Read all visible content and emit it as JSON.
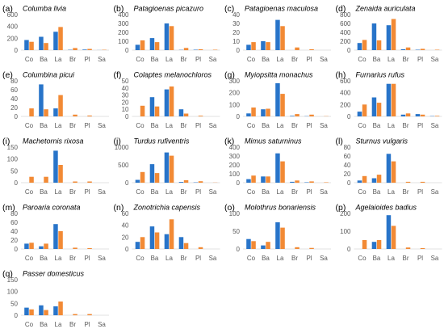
{
  "chart_data": [
    {
      "type": "bar",
      "label": "(a)",
      "title": "Columba livia",
      "categories": [
        "Co",
        "Ba",
        "La",
        "Br",
        "Pl",
        "Sa"
      ],
      "yticks": [
        0,
        200,
        400,
        600
      ],
      "ylim": [
        0,
        600
      ],
      "grid": false,
      "series": [
        {
          "color": "#2874c9",
          "values": [
            170,
            225,
            310,
            5,
            10,
            2
          ]
        },
        {
          "color": "#f28a35",
          "values": [
            140,
            120,
            390,
            35,
            20,
            5
          ]
        }
      ]
    },
    {
      "type": "bar",
      "label": "(b)",
      "title": "Patagioenas picazuro",
      "categories": [
        "Co",
        "Ba",
        "La",
        "Br",
        "Pl",
        "Sa"
      ],
      "yticks": [
        0,
        100,
        200,
        300,
        400
      ],
      "ylim": [
        0,
        400
      ],
      "grid": false,
      "series": [
        {
          "color": "#2874c9",
          "values": [
            60,
            135,
            300,
            3,
            5,
            0
          ]
        },
        {
          "color": "#f28a35",
          "values": [
            110,
            90,
            270,
            25,
            10,
            5
          ]
        }
      ]
    },
    {
      "type": "bar",
      "label": "(c)",
      "title": "Patagioenas maculosa",
      "categories": [
        "Co",
        "Ba",
        "La",
        "Br",
        "Pl",
        "Sa"
      ],
      "yticks": [
        0,
        10,
        20,
        30,
        40
      ],
      "ylim": [
        0,
        40
      ],
      "grid": false,
      "series": [
        {
          "color": "#2874c9",
          "values": [
            6,
            10,
            34,
            0,
            0,
            0
          ]
        },
        {
          "color": "#f28a35",
          "values": [
            9,
            9,
            27,
            3,
            1,
            0
          ]
        }
      ]
    },
    {
      "type": "bar",
      "label": "(d)",
      "title": "Zenaida auriculata",
      "categories": [
        "Co",
        "Ba",
        "La",
        "Br",
        "Pl",
        "Sa"
      ],
      "yticks": [
        0,
        200,
        400,
        600,
        800
      ],
      "ylim": [
        0,
        800
      ],
      "grid": false,
      "series": [
        {
          "color": "#2874c9",
          "values": [
            160,
            600,
            560,
            20,
            10,
            0
          ]
        },
        {
          "color": "#f28a35",
          "values": [
            230,
            220,
            700,
            60,
            30,
            10
          ]
        }
      ]
    },
    {
      "type": "bar",
      "label": "(e)",
      "title": "Columbina picui",
      "categories": [
        "Co",
        "Ba",
        "La",
        "Br",
        "Pl",
        "Sa"
      ],
      "yticks": [
        0,
        20,
        40,
        60,
        80
      ],
      "ylim": [
        0,
        80
      ],
      "grid": false,
      "series": [
        {
          "color": "#2874c9",
          "values": [
            0,
            72,
            18,
            0,
            0,
            0
          ]
        },
        {
          "color": "#f28a35",
          "values": [
            18,
            16,
            48,
            4,
            2,
            0
          ]
        }
      ]
    },
    {
      "type": "bar",
      "label": "(f)",
      "title": "Colaptes melanochloros",
      "categories": [
        "Co",
        "Ba",
        "La",
        "Br",
        "Pl",
        "Sa"
      ],
      "yticks": [
        0,
        10,
        20,
        30,
        40,
        50
      ],
      "ylim": [
        0,
        50
      ],
      "grid": false,
      "series": [
        {
          "color": "#2874c9",
          "values": [
            0,
            27,
            38,
            10,
            0,
            0
          ]
        },
        {
          "color": "#f28a35",
          "values": [
            15,
            14,
            42,
            4,
            1,
            0
          ]
        }
      ]
    },
    {
      "type": "bar",
      "label": "(g)",
      "title": "Myiopsitta monachus",
      "categories": [
        "Co",
        "Ba",
        "La",
        "Br",
        "Pl",
        "Sa"
      ],
      "yticks": [
        0,
        100,
        200,
        300
      ],
      "ylim": [
        0,
        300
      ],
      "grid": false,
      "series": [
        {
          "color": "#2874c9",
          "values": [
            25,
            60,
            280,
            5,
            2,
            0
          ]
        },
        {
          "color": "#f28a35",
          "values": [
            75,
            65,
            190,
            20,
            15,
            2
          ]
        }
      ]
    },
    {
      "type": "bar",
      "label": "(h)",
      "title": "Furnarius rufus",
      "categories": [
        "Co",
        "Ba",
        "La",
        "Br",
        "Pl",
        "Sa"
      ],
      "yticks": [
        0,
        200,
        400,
        600
      ],
      "ylim": [
        0,
        600
      ],
      "grid": false,
      "series": [
        {
          "color": "#2874c9",
          "values": [
            80,
            320,
            550,
            30,
            40,
            5
          ]
        },
        {
          "color": "#f28a35",
          "values": [
            200,
            230,
            550,
            50,
            30,
            10
          ]
        }
      ]
    },
    {
      "type": "bar",
      "label": "(i)",
      "title": "Machetornis rixosa",
      "categories": [
        "Co",
        "Ba",
        "La",
        "Br",
        "Pl",
        "Sa"
      ],
      "yticks": [
        0,
        50,
        100,
        150
      ],
      "ylim": [
        0,
        150
      ],
      "grid": false,
      "series": [
        {
          "color": "#2874c9",
          "values": [
            0,
            0,
            135,
            0,
            0,
            0
          ]
        },
        {
          "color": "#f28a35",
          "values": [
            25,
            25,
            75,
            5,
            5,
            0
          ]
        }
      ]
    },
    {
      "type": "bar",
      "label": "(j)",
      "title": "Turdus rufiventris",
      "categories": [
        "Co",
        "Ba",
        "La",
        "Br",
        "Pl",
        "Sa"
      ],
      "yticks": [
        0,
        500,
        1000
      ],
      "ylim": [
        0,
        1000
      ],
      "grid": false,
      "series": [
        {
          "color": "#2874c9",
          "values": [
            80,
            520,
            850,
            20,
            10,
            0
          ]
        },
        {
          "color": "#f28a35",
          "values": [
            300,
            270,
            760,
            70,
            40,
            5
          ]
        }
      ]
    },
    {
      "type": "bar",
      "label": "(k)",
      "title": "Mimus saturninus",
      "categories": [
        "Co",
        "Ba",
        "La",
        "Br",
        "Pl",
        "Sa"
      ],
      "yticks": [
        0,
        100,
        200,
        300,
        400
      ],
      "ylim": [
        0,
        400
      ],
      "grid": false,
      "series": [
        {
          "color": "#2874c9",
          "values": [
            40,
            70,
            330,
            10,
            5,
            0
          ]
        },
        {
          "color": "#f28a35",
          "values": [
            80,
            70,
            240,
            25,
            15,
            5
          ]
        }
      ]
    },
    {
      "type": "bar",
      "label": "(l)",
      "title": "Sturnus vulgaris",
      "categories": [
        "Co",
        "Ba",
        "La",
        "Br",
        "Pl",
        "Sa"
      ],
      "yticks": [
        0,
        20,
        40,
        60,
        80
      ],
      "ylim": [
        0,
        80
      ],
      "grid": false,
      "series": [
        {
          "color": "#2874c9",
          "values": [
            5,
            10,
            65,
            0,
            0,
            0
          ]
        },
        {
          "color": "#f28a35",
          "values": [
            15,
            18,
            48,
            2,
            2,
            0
          ]
        }
      ]
    },
    {
      "type": "bar",
      "label": "(m)",
      "title": "Paroaria coronata",
      "categories": [
        "Co",
        "Ba",
        "La",
        "Br",
        "Pl",
        "Sa"
      ],
      "yticks": [
        0,
        20,
        40,
        60,
        80
      ],
      "ylim": [
        0,
        80
      ],
      "grid": false,
      "series": [
        {
          "color": "#2874c9",
          "values": [
            12,
            6,
            56,
            0,
            0,
            0
          ]
        },
        {
          "color": "#f28a35",
          "values": [
            14,
            12,
            40,
            3,
            2,
            0
          ]
        }
      ]
    },
    {
      "type": "bar",
      "label": "(n)",
      "title": "Zonotrichia capensis",
      "categories": [
        "Co",
        "Ba",
        "La",
        "Br",
        "Pl",
        "Sa"
      ],
      "yticks": [
        0,
        20,
        40,
        60
      ],
      "ylim": [
        0,
        60
      ],
      "grid": false,
      "series": [
        {
          "color": "#2874c9",
          "values": [
            12,
            38,
            25,
            20,
            0,
            0
          ]
        },
        {
          "color": "#f28a35",
          "values": [
            20,
            28,
            50,
            10,
            3,
            0
          ]
        }
      ]
    },
    {
      "type": "bar",
      "label": "(o)",
      "title": "Molothrus bonariensis",
      "categories": [
        "Co",
        "Ba",
        "La",
        "Br",
        "Pl",
        "Sa"
      ],
      "yticks": [
        0,
        50,
        100
      ],
      "ylim": [
        0,
        100
      ],
      "grid": false,
      "series": [
        {
          "color": "#2874c9",
          "values": [
            28,
            10,
            75,
            0,
            0,
            0
          ]
        },
        {
          "color": "#f28a35",
          "values": [
            22,
            20,
            60,
            5,
            3,
            0
          ]
        }
      ]
    },
    {
      "type": "bar",
      "label": "(p)",
      "title": "Agelaioides badius",
      "categories": [
        "Co",
        "Ba",
        "La",
        "Br",
        "Pl",
        "Sa"
      ],
      "yticks": [
        0,
        100,
        200
      ],
      "ylim": [
        0,
        200
      ],
      "grid": false,
      "series": [
        {
          "color": "#2874c9",
          "values": [
            0,
            40,
            190,
            0,
            0,
            0
          ]
        },
        {
          "color": "#f28a35",
          "values": [
            50,
            50,
            130,
            8,
            5,
            0
          ]
        }
      ]
    },
    {
      "type": "bar",
      "label": "(q)",
      "title": "Passer domesticus",
      "categories": [
        "Co",
        "Ba",
        "La",
        "Br",
        "Pl",
        "Sa"
      ],
      "yticks": [
        0,
        50,
        100,
        150
      ],
      "ylim": [
        0,
        150
      ],
      "grid": false,
      "series": [
        {
          "color": "#2874c9",
          "values": [
            32,
            42,
            38,
            0,
            0,
            0
          ]
        },
        {
          "color": "#f28a35",
          "values": [
            25,
            22,
            58,
            5,
            5,
            0
          ]
        }
      ]
    }
  ]
}
